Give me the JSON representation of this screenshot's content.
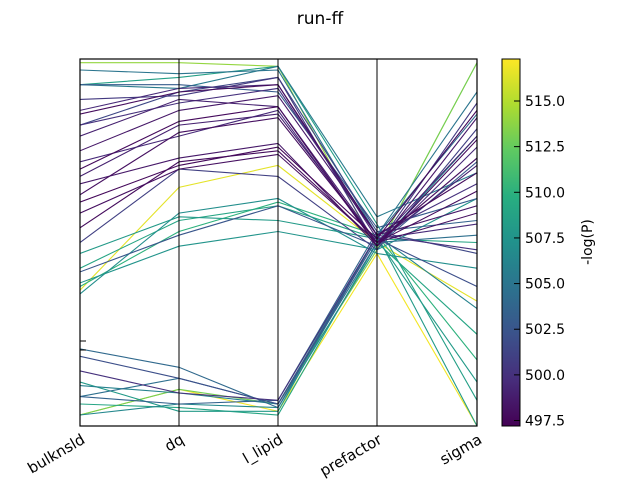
{
  "chart_data": {
    "type": "parallel_coordinates",
    "title": "run-ff",
    "axes": [
      "bulknsld",
      "dq",
      "l_lipid",
      "prefactor",
      "sigma"
    ],
    "colorbar": {
      "label": "-log(P)",
      "range": [
        497.2,
        517.3
      ],
      "ticks": [
        "497.5",
        "500.0",
        "502.5",
        "505.0",
        "507.5",
        "510.0",
        "512.5",
        "515.0"
      ],
      "tick_values": [
        497.5,
        500.0,
        502.5,
        505.0,
        507.5,
        510.0,
        512.5,
        515.0
      ],
      "colormap": "viridis"
    },
    "lines": [
      {
        "values": [
          0.03,
          0.1,
          0.04,
          0.47,
          0.0
        ],
        "color_value": 517.0
      },
      {
        "values": [
          0.37,
          0.65,
          0.71,
          0.5,
          0.34
        ],
        "color_value": 516.5
      },
      {
        "values": [
          0.99,
          0.99,
          0.98,
          0.48,
          0.99
        ],
        "color_value": 514.0
      },
      {
        "values": [
          0.03,
          0.1,
          0.06,
          0.48,
          0.99
        ],
        "color_value": 513.0
      },
      {
        "values": [
          0.38,
          0.53,
          0.61,
          0.52,
          0.18
        ],
        "color_value": 510.0
      },
      {
        "values": [
          0.06,
          0.05,
          0.03,
          0.5,
          0.25
        ],
        "color_value": 509.0
      },
      {
        "values": [
          0.43,
          0.56,
          0.6,
          0.51,
          0.5
        ],
        "color_value": 509.0
      },
      {
        "values": [
          0.93,
          0.95,
          0.98,
          0.55,
          0.07
        ],
        "color_value": 508.5
      },
      {
        "values": [
          0.47,
          0.57,
          0.56,
          0.51,
          0.12
        ],
        "color_value": 508.0
      },
      {
        "values": [
          0.12,
          0.04,
          0.04,
          0.52,
          0.0
        ],
        "color_value": 508.0
      },
      {
        "values": [
          0.39,
          0.49,
          0.53,
          0.48,
          0.62
        ],
        "color_value": 507.5
      },
      {
        "values": [
          0.36,
          0.58,
          0.62,
          0.47,
          0.43
        ],
        "color_value": 507.0
      },
      {
        "values": [
          0.03,
          0.06,
          0.05,
          0.49,
          0.79
        ],
        "color_value": 506.5
      },
      {
        "values": [
          0.11,
          0.09,
          0.06,
          0.52,
          0.32
        ],
        "color_value": 506.0
      },
      {
        "values": [
          0.93,
          0.92,
          0.98,
          0.57,
          0.69
        ],
        "color_value": 505.5
      },
      {
        "values": [
          0.97,
          0.96,
          0.97,
          0.52,
          0.91
        ],
        "color_value": 505.0
      },
      {
        "values": [
          0.08,
          0.13,
          0.06,
          0.5,
          0.52
        ],
        "color_value": 504.5
      },
      {
        "values": [
          0.21,
          0.16,
          0.05,
          0.52,
          0.85
        ],
        "color_value": 504.0
      },
      {
        "values": [
          0.08,
          0.06,
          0.07,
          0.53,
          0.56
        ],
        "color_value": 503.5
      },
      {
        "values": [
          0.93,
          0.93,
          0.91,
          0.54,
          0.62
        ],
        "color_value": 503.0
      },
      {
        "values": [
          0.42,
          0.52,
          0.6,
          0.49,
          0.72
        ],
        "color_value": 502.5
      },
      {
        "values": [
          0.19,
          0.13,
          0.06,
          0.51,
          0.38
        ],
        "color_value": 502.0
      },
      {
        "values": [
          0.82,
          0.91,
          0.95,
          0.53,
          0.47
        ],
        "color_value": 501.5
      },
      {
        "values": [
          0.5,
          0.7,
          0.68,
          0.48,
          0.81
        ],
        "color_value": 501.0
      },
      {
        "values": [
          0.89,
          0.9,
          0.95,
          0.49,
          0.88
        ],
        "color_value": 500.5
      },
      {
        "values": [
          0.15,
          0.09,
          0.07,
          0.52,
          0.48
        ],
        "color_value": 500.0
      },
      {
        "values": [
          0.82,
          0.88,
          0.92,
          0.52,
          0.66
        ],
        "color_value": 500.0
      },
      {
        "values": [
          0.72,
          0.79,
          0.86,
          0.49,
          0.76
        ],
        "color_value": 499.5
      },
      {
        "values": [
          0.86,
          0.92,
          0.93,
          0.51,
          0.55
        ],
        "color_value": 499.5
      },
      {
        "values": [
          0.79,
          0.89,
          0.87,
          0.5,
          0.71
        ],
        "color_value": 499.0
      },
      {
        "values": [
          0.68,
          0.82,
          0.85,
          0.5,
          0.79
        ],
        "color_value": 499.0
      },
      {
        "values": [
          0.75,
          0.86,
          0.9,
          0.52,
          0.6
        ],
        "color_value": 498.5
      },
      {
        "values": [
          0.66,
          0.73,
          0.77,
          0.49,
          0.84
        ],
        "color_value": 498.5
      },
      {
        "values": [
          0.58,
          0.7,
          0.74,
          0.5,
          0.58
        ],
        "color_value": 498.0
      },
      {
        "values": [
          0.63,
          0.8,
          0.84,
          0.5,
          0.73
        ],
        "color_value": 498.0
      },
      {
        "values": [
          0.54,
          0.72,
          0.75,
          0.5,
          0.64
        ],
        "color_value": 497.8
      },
      {
        "values": [
          0.61,
          0.71,
          0.76,
          0.51,
          0.86
        ],
        "color_value": 497.6
      },
      {
        "values": [
          0.85,
          0.91,
          0.93,
          0.52,
          0.69
        ],
        "color_value": 497.8
      },
      {
        "values": [
          0.7,
          0.83,
          0.87,
          0.49,
          0.78
        ],
        "color_value": 497.7
      }
    ]
  }
}
